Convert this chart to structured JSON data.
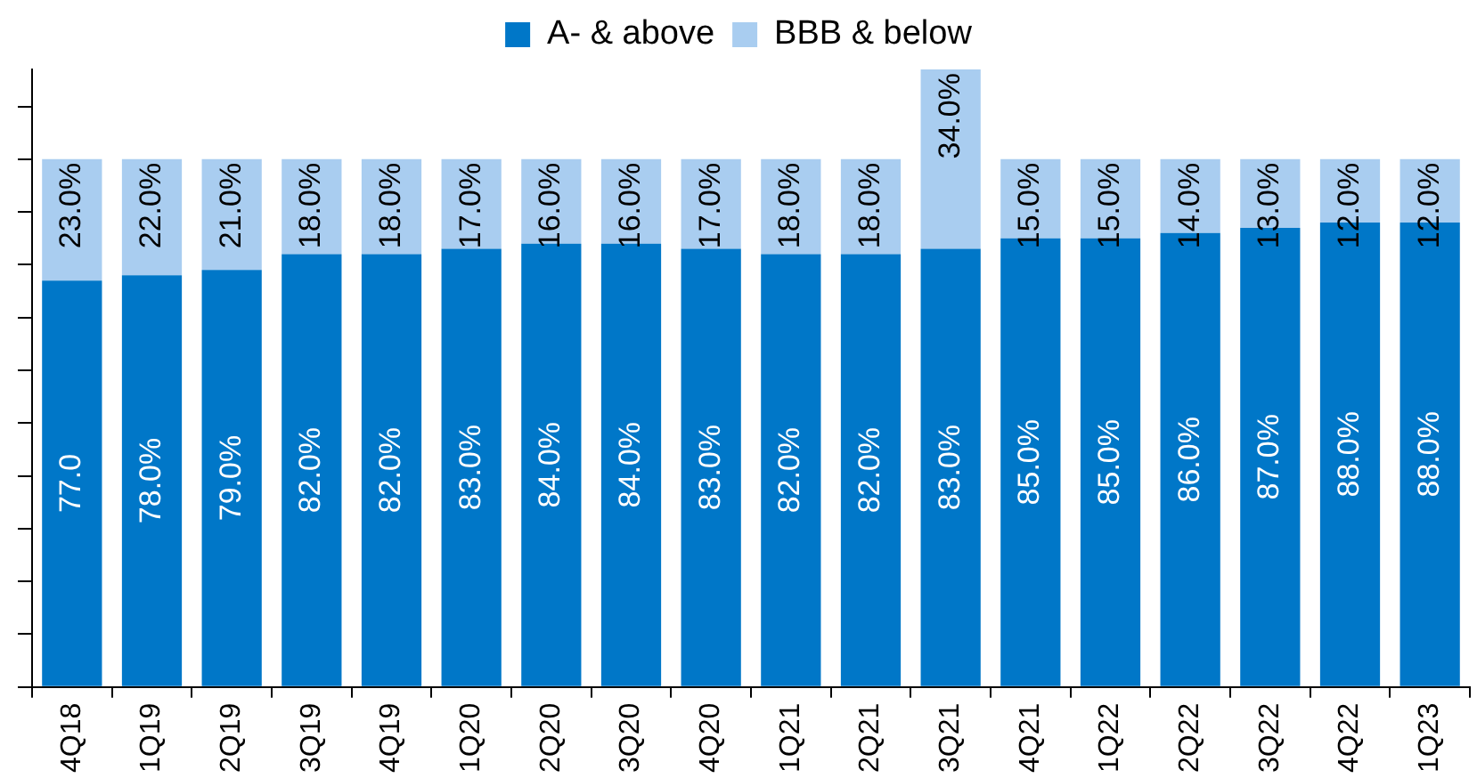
{
  "chart_data": {
    "type": "bar",
    "stacked": true,
    "legend": "top",
    "grid": false,
    "tick_labels": "x",
    "categories": [
      "4Q18",
      "1Q19",
      "2Q19",
      "3Q19",
      "4Q19",
      "1Q20",
      "2Q20",
      "3Q20",
      "4Q20",
      "1Q21",
      "2Q21",
      "3Q21",
      "4Q21",
      "1Q22",
      "2Q22",
      "3Q22",
      "4Q22",
      "1Q23"
    ],
    "ylim": [
      0,
      117
    ],
    "yticks": [
      {
        "value": 0,
        "label": null
      },
      {
        "value": 10,
        "label": null
      },
      {
        "value": 20,
        "label": null
      },
      {
        "value": 30,
        "label": null
      },
      {
        "value": 40,
        "label": null
      },
      {
        "value": 50,
        "label": null
      },
      {
        "value": 60,
        "label": null
      },
      {
        "value": 70,
        "label": null
      },
      {
        "value": 80,
        "label": null
      },
      {
        "value": 90,
        "label": null
      },
      {
        "value": 100,
        "label": null
      },
      {
        "value": 110,
        "label": null
      }
    ],
    "series": [
      {
        "name": "A- & above",
        "color": "#0077c8",
        "values": [
          77,
          78,
          79,
          82,
          82,
          83,
          84,
          84,
          83,
          82,
          82,
          83,
          85,
          85,
          86,
          87,
          88,
          88
        ],
        "value_labels": [
          "77.0",
          "78.0%",
          "79.0%",
          "82.0%",
          "82.0%",
          "83.0%",
          "84.0%",
          "84.0%",
          "83.0%",
          "82.0%",
          "82.0%",
          "83.0%",
          "85.0%",
          "85.0%",
          "86.0%",
          "87.0%",
          "88.0%",
          "88.0%"
        ]
      },
      {
        "name": "BBB & below",
        "color": "#a9cdf0",
        "values": [
          23,
          22,
          21,
          18,
          18,
          17,
          16,
          16,
          17,
          18,
          18,
          34,
          15,
          15,
          14,
          13,
          12,
          12
        ],
        "value_labels": [
          "23.0%",
          "22.0%",
          "21.0%",
          "18.0%",
          "18.0%",
          "17.0%",
          "16.0%",
          "16.0%",
          "17.0%",
          "18.0%",
          "18.0%",
          "34.0%",
          "15.0%",
          "15.0%",
          "14.0%",
          "13.0%",
          "12.0%",
          "12.0%"
        ]
      }
    ]
  }
}
